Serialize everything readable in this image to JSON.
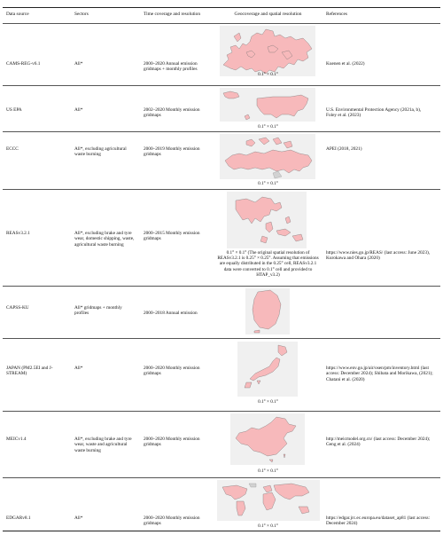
{
  "header": {
    "data_source": "Data source",
    "sectors": "Sectors",
    "time": "Time coverage and resolution",
    "geo": "Geocoverage and spatial resolution",
    "refs": "References"
  },
  "rows": [
    {
      "source": "CAMS-REG-v6.1",
      "sectors": "All*",
      "time": "2000–2020 Annual emission gridmaps + monthly profiles",
      "resolution": "0.1° × 0.1°",
      "refs": "Kuenen et al. (2022)",
      "map_icon": "europe-map"
    },
    {
      "source": "US EPA",
      "sectors": "All*",
      "time": "2002–2020 Monthly emission gridmaps",
      "resolution": "0.1° × 0.1°",
      "refs": "U.S. Environmental Protection Agency (2021a, b), Foley et al. (2023)",
      "map_icon": "usa-map"
    },
    {
      "source": "ECCC",
      "sectors": "All*, excluding agricultural waste burning",
      "time": "2000–2019 Monthly emission gridmaps",
      "resolution": "0.1° × 0.1°",
      "refs": "APEI (2018, 2021)",
      "map_icon": "canada-map"
    },
    {
      "source": "REASv3.2.1",
      "sectors": "All*, excluding brake and tyre wear, domestic shipping, waste, agricultural waste burning",
      "time": "2000–2015 Monthly emission gridmaps",
      "resolution": "0.1° × 0.1° (The original spatial resolution of REASv3.2.1 is 0.25° × 0.25°. Assuming that emissions are equally distributed in the 0.25° cell, REASv3.2.1 data were converted to 0.1° cell and provided to HTAP_v3.2)",
      "refs": "https://www.nies.go.jp/REAS/ (last access: June 2023), Kurokawa and Ohara (2020)",
      "map_icon": "asia-map"
    },
    {
      "source": "CAPSS-KU",
      "sectors": "All* gridmaps + monthly profiles",
      "time": "2000–2018 Annual emission",
      "resolution": "",
      "refs": "",
      "map_icon": "korea-map"
    },
    {
      "source": "JAPAN (PM2.5EI and J-STREAM)",
      "sectors": "All*",
      "time": "2000–2020 Monthly emission gridmaps",
      "resolution": "0.1° × 0.1°",
      "refs": "https://www.env.go.jp/air/osen/pm/inventory.html (last access: December 2024); Shibata and Morikawa, (2021); Chatani et al. (2020)",
      "map_icon": "japan-map"
    },
    {
      "source": "MEICv1.4",
      "sectors": "All*, excluding brake and tyre wear, waste and agricultural waste burning",
      "time": "2000–2020 Monthly emission gridmaps",
      "resolution": "0.1° × 0.1°",
      "refs": "http://meicmodel.org.cn/ (last access: December 2024); Geng et al. (2024)",
      "map_icon": "china-map"
    },
    {
      "source": "EDGARv8.1",
      "sectors": "All*",
      "time": "2000–2020 Monthly emission gridmaps",
      "resolution": "0.1° × 0.1°",
      "refs": "https://edgar.jrc.ec.europa.eu/dataset_ap81 (last access: December 2024)",
      "map_icon": "world-map"
    }
  ]
}
